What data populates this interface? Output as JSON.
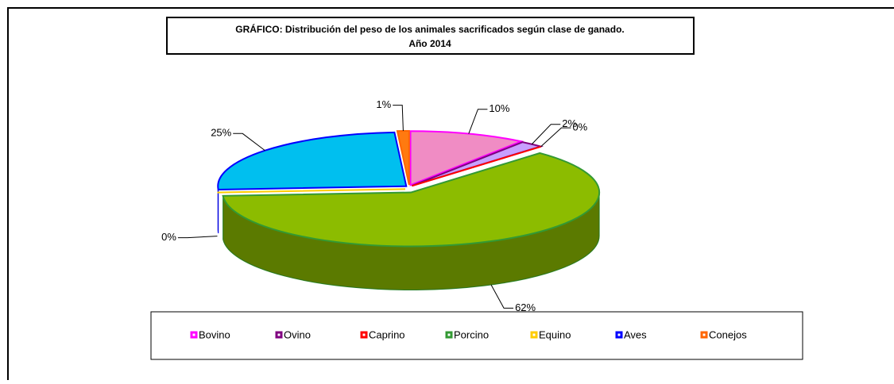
{
  "chart_data": {
    "type": "pie3d",
    "title": "GRÁFICO: Distribución del peso de los animales sacrificados según clase de ganado.",
    "subtitle": "Año 2014",
    "categories": [
      "Bovino",
      "Ovino",
      "Caprino",
      "Porcino",
      "Equino",
      "Aves",
      "Conejos"
    ],
    "values": [
      10,
      2,
      0,
      62,
      0,
      25,
      1
    ],
    "value_labels": [
      "10%",
      "2%",
      "0%",
      "62%",
      "0%",
      "25%",
      "1%"
    ],
    "colors": [
      "#f08cc4",
      "#c8a0ff",
      "#e02020",
      "#8cbc00",
      "#ffcc00",
      "#00bfef",
      "#ff7a10"
    ],
    "borders": [
      "#ff00ff",
      "#800080",
      "#ff0000",
      "#339933",
      "#ffcc00",
      "#0000ff",
      "#ff6600"
    ],
    "legend": "bottom"
  }
}
